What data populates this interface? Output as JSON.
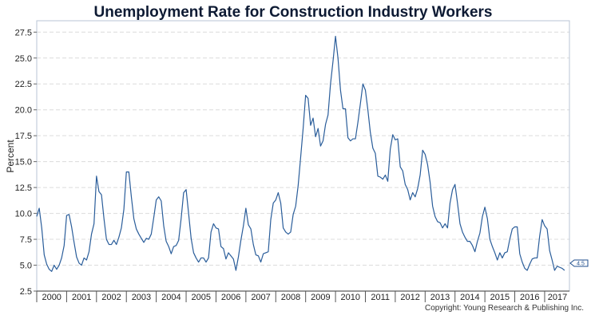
{
  "chart_data": {
    "type": "line",
    "title": "Unemployment Rate for Construction Industry Workers",
    "ylabel": "Percent",
    "xlabel": "",
    "ylim": [
      2.5,
      28.6
    ],
    "xlim": [
      2000,
      2017.83
    ],
    "yticks": [
      2.5,
      5.0,
      7.5,
      10.0,
      12.5,
      15.0,
      17.5,
      20.0,
      22.5,
      25.0,
      27.5
    ],
    "ytick_labels": [
      "2.5",
      "5.0",
      "7.5",
      "10.0",
      "12.5",
      "15.0",
      "17.5",
      "20.0",
      "22.5",
      "25.0",
      "27.5"
    ],
    "xtick_labels": [
      "2000",
      "2001",
      "2002",
      "2003",
      "2004",
      "2005",
      "2006",
      "2007",
      "2008",
      "2009",
      "2010",
      "2011",
      "2012",
      "2013",
      "2014",
      "2015",
      "2016",
      "2017"
    ],
    "grid": true,
    "legend": "none",
    "line_color": "#2a5d9a",
    "end_label": "4.5",
    "copyright": "Copyright: Young Research & Publishing Inc.",
    "series": [
      {
        "x": [
          2000.0,
          2000.083,
          2000.167,
          2000.25,
          2000.333,
          2000.417,
          2000.5,
          2000.583,
          2000.667,
          2000.75,
          2000.833,
          2000.917,
          2001.0,
          2001.083,
          2001.167,
          2001.25,
          2001.333,
          2001.417,
          2001.5,
          2001.583,
          2001.667,
          2001.75,
          2001.833,
          2001.917,
          2002.0,
          2002.083,
          2002.167,
          2002.25,
          2002.333,
          2002.417,
          2002.5,
          2002.583,
          2002.667,
          2002.75,
          2002.833,
          2002.917,
          2003.0,
          2003.083,
          2003.167,
          2003.25,
          2003.333,
          2003.417,
          2003.5,
          2003.583,
          2003.667,
          2003.75,
          2003.833,
          2003.917,
          2004.0,
          2004.083,
          2004.167,
          2004.25,
          2004.333,
          2004.417,
          2004.5,
          2004.583,
          2004.667,
          2004.75,
          2004.833,
          2004.917,
          2005.0,
          2005.083,
          2005.167,
          2005.25,
          2005.333,
          2005.417,
          2005.5,
          2005.583,
          2005.667,
          2005.75,
          2005.833,
          2005.917,
          2006.0,
          2006.083,
          2006.167,
          2006.25,
          2006.333,
          2006.417,
          2006.5,
          2006.583,
          2006.667,
          2006.75,
          2006.833,
          2006.917,
          2007.0,
          2007.083,
          2007.167,
          2007.25,
          2007.333,
          2007.417,
          2007.5,
          2007.583,
          2007.667,
          2007.75,
          2007.833,
          2007.917,
          2008.0,
          2008.083,
          2008.167,
          2008.25,
          2008.333,
          2008.417,
          2008.5,
          2008.583,
          2008.667,
          2008.75,
          2008.833,
          2008.917,
          2009.0,
          2009.083,
          2009.167,
          2009.25,
          2009.333,
          2009.417,
          2009.5,
          2009.583,
          2009.667,
          2009.75,
          2009.833,
          2009.917,
          2010.0,
          2010.083,
          2010.167,
          2010.25,
          2010.333,
          2010.417,
          2010.5,
          2010.583,
          2010.667,
          2010.75,
          2010.833,
          2010.917,
          2011.0,
          2011.083,
          2011.167,
          2011.25,
          2011.333,
          2011.417,
          2011.5,
          2011.583,
          2011.667,
          2011.75,
          2011.833,
          2011.917,
          2012.0,
          2012.083,
          2012.167,
          2012.25,
          2012.333,
          2012.417,
          2012.5,
          2012.583,
          2012.667,
          2012.75,
          2012.833,
          2012.917,
          2013.0,
          2013.083,
          2013.167,
          2013.25,
          2013.333,
          2013.417,
          2013.5,
          2013.583,
          2013.667,
          2013.75,
          2013.833,
          2013.917,
          2014.0,
          2014.083,
          2014.167,
          2014.25,
          2014.333,
          2014.417,
          2014.5,
          2014.583,
          2014.667,
          2014.75,
          2014.833,
          2014.917,
          2015.0,
          2015.083,
          2015.167,
          2015.25,
          2015.333,
          2015.417,
          2015.5,
          2015.583,
          2015.667,
          2015.75,
          2015.833,
          2015.917,
          2016.0,
          2016.083,
          2016.167,
          2016.25,
          2016.333,
          2016.417,
          2016.5,
          2016.583,
          2016.667,
          2016.75,
          2016.833,
          2016.917,
          2017.0,
          2017.083,
          2017.167,
          2017.25,
          2017.333,
          2017.417,
          2017.5,
          2017.583,
          2017.667
        ],
        "values": [
          9.7,
          10.5,
          8.6,
          6.0,
          5.1,
          4.6,
          4.4,
          5.0,
          4.6,
          5.0,
          5.7,
          6.9,
          9.8,
          9.9,
          8.7,
          7.2,
          5.8,
          5.2,
          5.0,
          5.7,
          5.5,
          6.3,
          8.0,
          9.0,
          13.6,
          12.1,
          11.8,
          9.5,
          7.5,
          7.0,
          7.0,
          7.4,
          7.0,
          7.7,
          8.6,
          10.4,
          14.0,
          14.0,
          11.6,
          9.5,
          8.5,
          8.0,
          7.6,
          7.2,
          7.6,
          7.5,
          8.0,
          9.6,
          11.3,
          11.6,
          11.2,
          8.8,
          7.3,
          6.8,
          6.1,
          6.8,
          6.9,
          7.4,
          9.5,
          12.0,
          12.3,
          10.0,
          7.6,
          6.2,
          5.7,
          5.3,
          5.7,
          5.7,
          5.3,
          5.7,
          8.2,
          9.0,
          8.6,
          8.5,
          6.8,
          6.6,
          5.6,
          6.2,
          5.9,
          5.6,
          4.5,
          5.8,
          7.4,
          8.8,
          10.5,
          8.9,
          8.5,
          7.0,
          6.0,
          5.9,
          5.3,
          6.1,
          6.2,
          6.3,
          9.4,
          11.0,
          11.3,
          12.0,
          11.0,
          8.6,
          8.2,
          8.0,
          8.2,
          9.9,
          10.7,
          12.7,
          15.4,
          18.2,
          21.4,
          21.1,
          18.5,
          19.2,
          17.4,
          18.2,
          16.5,
          17.0,
          18.6,
          19.5,
          22.5,
          24.7,
          27.1,
          25.0,
          21.9,
          20.1,
          20.1,
          17.3,
          17.0,
          17.2,
          17.2,
          18.8,
          20.6,
          22.5,
          21.9,
          20.0,
          17.8,
          16.3,
          15.8,
          13.6,
          13.5,
          13.3,
          13.7,
          13.1,
          16.2,
          17.6,
          17.1,
          17.2,
          14.5,
          14.1,
          12.8,
          12.3,
          11.3,
          12.0,
          11.6,
          12.4,
          13.7,
          16.1,
          15.7,
          14.7,
          13.0,
          10.7,
          9.7,
          9.2,
          9.1,
          8.6,
          9.0,
          8.6,
          11.0,
          12.3,
          12.8,
          11.0,
          9.0,
          8.2,
          7.7,
          7.3,
          7.3,
          6.9,
          6.3,
          7.3,
          8.1,
          9.7,
          10.6,
          9.5,
          7.5,
          6.8,
          6.2,
          5.5,
          6.2,
          5.7,
          6.2,
          6.3,
          7.5,
          8.5,
          8.7,
          8.7,
          6.1,
          5.3,
          4.7,
          4.5,
          5.1,
          5.6,
          5.7,
          5.7,
          7.8,
          9.4,
          8.8,
          8.5,
          6.4,
          5.5,
          4.5,
          4.9,
          4.8,
          4.7,
          4.5
        ]
      }
    ]
  }
}
